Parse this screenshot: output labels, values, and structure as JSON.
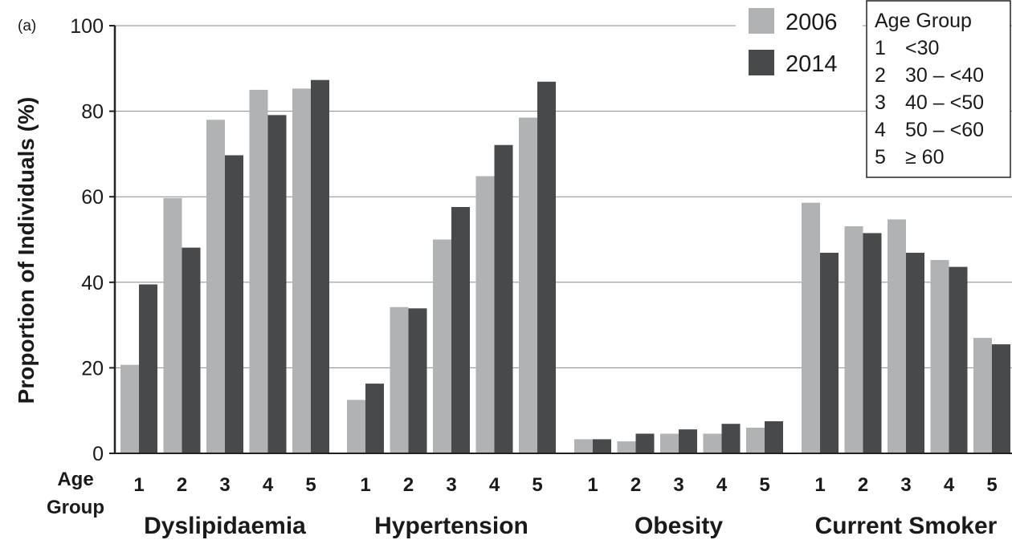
{
  "chart_data": {
    "type": "bar",
    "panel_label": "(a)",
    "ylabel": "Proportion of Individuals  (%)",
    "xlabel": "Age\nGroup",
    "ylim": [
      0,
      100
    ],
    "yticks": [
      "0",
      "20",
      "40",
      "60",
      "80",
      "100"
    ],
    "grid": "horizontal",
    "categories": [
      "Dyslipidaemia",
      "Hypertension",
      "Obesity",
      "Current Smoker"
    ],
    "age_group_ticks": [
      "1",
      "2",
      "3",
      "4",
      "5"
    ],
    "series": [
      {
        "name": "2006",
        "color": "#b1b2b4",
        "values": [
          [
            20.7,
            59.7,
            78.0,
            85.0,
            85.3
          ],
          [
            12.5,
            34.2,
            50.0,
            64.8,
            78.5
          ],
          [
            3.3,
            2.8,
            4.6,
            4.6,
            6.0
          ],
          [
            58.6,
            53.1,
            54.7,
            45.2,
            27.0
          ]
        ]
      },
      {
        "name": "2014",
        "color": "#48494b",
        "values": [
          [
            39.5,
            48.1,
            69.7,
            79.1,
            87.3
          ],
          [
            16.3,
            33.9,
            57.6,
            72.1,
            86.9
          ],
          [
            3.3,
            4.6,
            5.6,
            6.9,
            7.5
          ],
          [
            46.9,
            51.5,
            46.9,
            43.6,
            25.5
          ]
        ]
      }
    ],
    "legend_position": "top-right",
    "age_group_legend": {
      "title": "Age Group",
      "entries": [
        {
          "num": "1",
          "range": "<30"
        },
        {
          "num": "2",
          "range": "30 – <40"
        },
        {
          "num": "3",
          "range": "40 – <50"
        },
        {
          "num": "4",
          "range": "50 – <60"
        },
        {
          "num": "5",
          "range": "≥ 60"
        }
      ]
    }
  }
}
